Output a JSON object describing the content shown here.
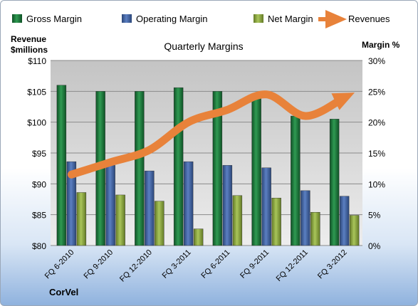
{
  "chart_data": {
    "type": "bar",
    "title": "Quarterly Margins",
    "company": "CorVel",
    "left_axis": {
      "label_line1": "Revenue",
      "label_line2": "$millions",
      "min": 80,
      "max": 110,
      "step": 5,
      "ticks": [
        "$80",
        "$85",
        "$90",
        "$95",
        "$100",
        "$105",
        "$110"
      ]
    },
    "right_axis": {
      "label": "Margin %",
      "min": 0,
      "max": 30,
      "step": 5,
      "ticks": [
        "0%",
        "5%",
        "10%",
        "15%",
        "20%",
        "25%",
        "30%"
      ]
    },
    "categories": [
      "FQ 6-2010",
      "FQ 9-2010",
      "FQ 12-2010",
      "FQ 3-2011",
      "FQ 6-2011",
      "FQ 9-2011",
      "FQ 12-2011",
      "FQ 3-2012"
    ],
    "series": [
      {
        "name": "Gross Margin",
        "axis": "right",
        "color": "#1f7a3c",
        "values": [
          26.0,
          25.0,
          25.0,
          25.6,
          25.0,
          24.0,
          21.0,
          20.5
        ]
      },
      {
        "name": "Operating Margin",
        "axis": "right",
        "color": "#3e60a0",
        "values": [
          13.6,
          13.0,
          12.1,
          13.6,
          13.0,
          12.6,
          8.9,
          8.0
        ]
      },
      {
        "name": "Net Margin",
        "axis": "right",
        "color": "#8aa83c",
        "values": [
          8.6,
          8.2,
          7.2,
          2.7,
          8.1,
          7.7,
          5.4,
          4.9
        ]
      },
      {
        "name": "Revenues",
        "axis": "left",
        "type": "line",
        "color": "#e8823a",
        "values": [
          91.5,
          93.5,
          95.5,
          100.0,
          102.0,
          104.5,
          101.0,
          104.0
        ]
      }
    ],
    "grid": true,
    "legend_position": "top"
  }
}
